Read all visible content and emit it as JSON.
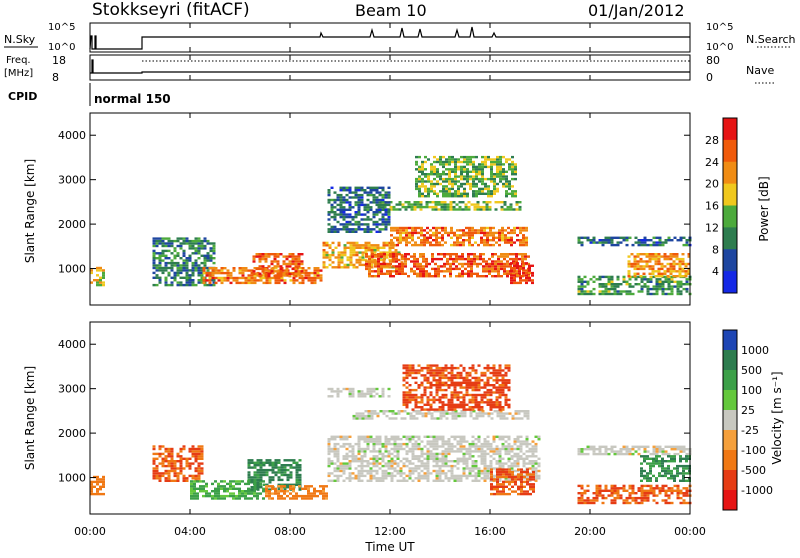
{
  "header": {
    "station": "Stokkseyri (fitACF)",
    "beam": "Beam 10",
    "date": "01/Jan/2012"
  },
  "strip_panels": {
    "nsky_label": "N.Sky",
    "nsky_ticks": [
      "10^5",
      "10^0"
    ],
    "nsearch_label": "N.Search",
    "nsearch_ticks": [
      "10^5",
      "10^0"
    ],
    "freq_label": "Freq.",
    "freq_unit": "[MHz]",
    "freq_ticks": [
      "18",
      "8"
    ],
    "nave_label": "Nave",
    "nave_ticks": [
      "80",
      "0"
    ],
    "cpid_label": "CPID",
    "cpid_value": "normal 150"
  },
  "time_axis": {
    "label": "Time UT",
    "ticks": [
      "00:00",
      "04:00",
      "08:00",
      "12:00",
      "16:00",
      "20:00",
      "00:00"
    ]
  },
  "range_axis": {
    "label": "Slant Range [km]",
    "ticks": [
      "1000",
      "2000",
      "3000",
      "4000"
    ]
  },
  "colorbars": {
    "power": {
      "label": "Power [dB]",
      "ticks": [
        "4",
        "8",
        "12",
        "16",
        "20",
        "24",
        "28"
      ],
      "colors": [
        "#1428e6",
        "#1e46a0",
        "#2e7d4f",
        "#4caa3c",
        "#f0c81e",
        "#f08c14",
        "#f05a0a",
        "#e61414"
      ]
    },
    "velocity": {
      "label": "Velocity [m s⁻¹]",
      "ticks": [
        "1000",
        "500",
        "100",
        "25",
        "-25",
        "-100",
        "-500",
        "-1000"
      ],
      "colors": [
        "#1e46b4",
        "#2e7d4f",
        "#3ca048",
        "#64c83c",
        "#c8c8c0",
        "#f5a03c",
        "#f07814",
        "#e63c14",
        "#e61414"
      ]
    }
  },
  "chart_data": [
    {
      "type": "heatmap",
      "title": "Power",
      "xlabel": "Time UT",
      "ylabel": "Slant Range [km]",
      "xlim": [
        "00:00",
        "24:00"
      ],
      "ylim": [
        180,
        4500
      ],
      "colorbar": "Power [dB]",
      "crange": [
        0,
        32
      ],
      "regions": [
        {
          "t0": 0.0,
          "t1": 0.6,
          "r0": 600,
          "r1": 1000,
          "value": 18
        },
        {
          "t0": 2.5,
          "t1": 5.0,
          "r0": 600,
          "r1": 1700,
          "value": 10
        },
        {
          "t0": 4.5,
          "t1": 9.2,
          "r0": 650,
          "r1": 1000,
          "value": 24
        },
        {
          "t0": 6.5,
          "t1": 8.5,
          "r0": 800,
          "r1": 1300,
          "value": 26
        },
        {
          "t0": 9.3,
          "t1": 12.5,
          "r0": 1000,
          "r1": 1600,
          "value": 20
        },
        {
          "t0": 11.0,
          "t1": 17.5,
          "r0": 800,
          "r1": 1300,
          "value": 26
        },
        {
          "t0": 12.0,
          "t1": 17.5,
          "r0": 1500,
          "r1": 1900,
          "value": 24
        },
        {
          "t0": 11.5,
          "t1": 17.2,
          "r0": 2300,
          "r1": 2500,
          "value": 14
        },
        {
          "t0": 9.5,
          "t1": 12.0,
          "r0": 1800,
          "r1": 2800,
          "value": 8
        },
        {
          "t0": 13.0,
          "t1": 17.0,
          "r0": 2600,
          "r1": 3500,
          "value": 14
        },
        {
          "t0": 16.8,
          "t1": 17.7,
          "r0": 650,
          "r1": 1100,
          "value": 28
        },
        {
          "t0": 19.5,
          "t1": 24.0,
          "r0": 1500,
          "r1": 1700,
          "value": 8
        },
        {
          "t0": 19.5,
          "t1": 24.0,
          "r0": 400,
          "r1": 800,
          "value": 12
        },
        {
          "t0": 21.5,
          "t1": 24.0,
          "r0": 800,
          "r1": 1300,
          "value": 22
        }
      ]
    },
    {
      "type": "heatmap",
      "title": "Velocity",
      "xlabel": "Time UT",
      "ylabel": "Slant Range [km]",
      "xlim": [
        "00:00",
        "24:00"
      ],
      "ylim": [
        180,
        4500
      ],
      "colorbar": "Velocity [m s^-1]",
      "regions": [
        {
          "t0": 0.0,
          "t1": 0.6,
          "r0": 600,
          "r1": 1000,
          "value": -200
        },
        {
          "t0": 2.5,
          "t1": 4.5,
          "r0": 900,
          "r1": 1700,
          "value": -300
        },
        {
          "t0": 4.0,
          "t1": 7.0,
          "r0": 500,
          "r1": 900,
          "value": 80
        },
        {
          "t0": 6.3,
          "t1": 8.4,
          "r0": 700,
          "r1": 1400,
          "value": 400
        },
        {
          "t0": 7.0,
          "t1": 9.5,
          "r0": 500,
          "r1": 800,
          "value": -150
        },
        {
          "t0": 9.5,
          "t1": 18.0,
          "r0": 900,
          "r1": 1900,
          "value": 0
        },
        {
          "t0": 10.5,
          "t1": 17.5,
          "r0": 2300,
          "r1": 2500,
          "value": 0
        },
        {
          "t0": 9.5,
          "t1": 12.0,
          "r0": 2800,
          "r1": 3000,
          "value": 0
        },
        {
          "t0": 16.0,
          "t1": 17.8,
          "r0": 600,
          "r1": 1200,
          "value": -300
        },
        {
          "t0": 12.5,
          "t1": 16.8,
          "r0": 2500,
          "r1": 3500,
          "value": -400
        },
        {
          "t0": 19.5,
          "t1": 24.0,
          "r0": 1500,
          "r1": 1700,
          "value": 0
        },
        {
          "t0": 19.5,
          "t1": 24.0,
          "r0": 400,
          "r1": 800,
          "value": -300
        },
        {
          "t0": 22.0,
          "t1": 24.0,
          "r0": 900,
          "r1": 1500,
          "value": 300
        }
      ]
    }
  ]
}
